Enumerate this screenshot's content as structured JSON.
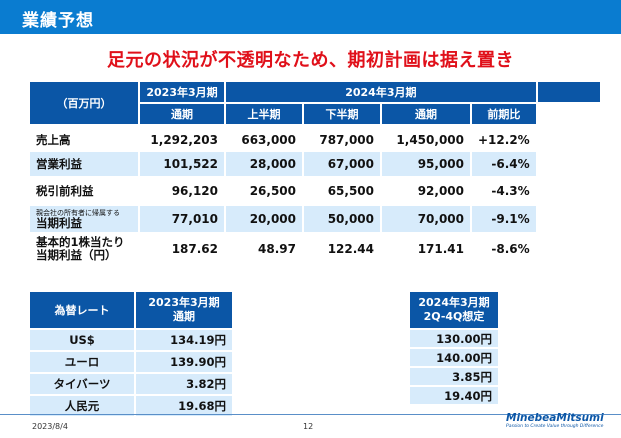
{
  "title": "業績予想",
  "subtitle": "足元の状況が不透明なため、期初計画は据え置き",
  "main_table": {
    "unit": "（百万円）",
    "col_fy2023": "2023年3月期",
    "col_fy2024": "2024年3月期",
    "sub_full_year": "通期",
    "sub_first_half": "上半期",
    "sub_second_half": "下半期",
    "sub_full_year2": "通期",
    "sub_yoy": "前期比",
    "rows": [
      {
        "label": "売上高",
        "fy2023": "1,292,203",
        "h1": "663,000",
        "h2": "787,000",
        "fy2024": "1,450,000",
        "yoy": "+12.2%"
      },
      {
        "label": "営業利益",
        "fy2023": "101,522",
        "h1": "28,000",
        "h2": "67,000",
        "fy2024": "95,000",
        "yoy": "-6.4%"
      },
      {
        "label": "税引前利益",
        "fy2023": "96,120",
        "h1": "26,500",
        "h2": "65,500",
        "fy2024": "92,000",
        "yoy": "-4.3%"
      },
      {
        "label_small": "親会社の所有者に帰属する",
        "label": "当期利益",
        "fy2023": "77,010",
        "h1": "20,000",
        "h2": "50,000",
        "fy2024": "70,000",
        "yoy": "-9.1%"
      },
      {
        "label_line1": "基本的1株当たり",
        "label": "当期利益（円）",
        "fy2023": "187.62",
        "h1": "48.97",
        "h2": "122.44",
        "fy2024": "171.41",
        "yoy": "-8.6%"
      }
    ]
  },
  "fx_table": {
    "header_label": "為替レート",
    "header_fy2023_line1": "2023年3月期",
    "header_fy2023_line2": "通期",
    "header_fy2024_line1": "2024年3月期",
    "header_fy2024_line2": "2Q-4Q想定",
    "rows": [
      {
        "currency": "US$",
        "fy2023": "134.19円",
        "fy2024": "130.00円"
      },
      {
        "currency": "ユーロ",
        "fy2023": "139.90円",
        "fy2024": "140.00円"
      },
      {
        "currency": "タイバーツ",
        "fy2023": "3.82円",
        "fy2024": "3.85円"
      },
      {
        "currency": "人民元",
        "fy2023": "19.68円",
        "fy2024": "19.40円"
      }
    ]
  },
  "footer": {
    "date": "2023/8/4",
    "page": "12",
    "logo": "MinebeaMitsumi",
    "logo_tagline": "Passion to Create Value through Difference"
  }
}
